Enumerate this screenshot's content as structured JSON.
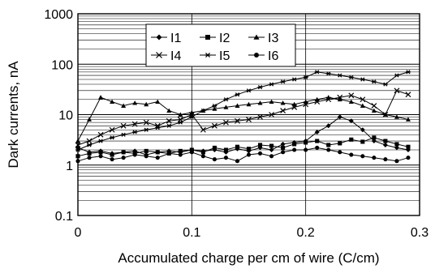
{
  "chart_data": {
    "type": "line",
    "xlabel": "Accumulated charge per cm of wire (C/cm)",
    "ylabel": "Dark currents, nA",
    "xlim": [
      0,
      0.3
    ],
    "ylim": [
      0.1,
      1000
    ],
    "y_scale": "log",
    "grid": true,
    "legend_position": "top-center",
    "x_ticks": [
      0,
      0.1,
      0.2,
      0.3
    ],
    "x_tick_labels": [
      "0",
      "0.1",
      "0.2",
      "0.3"
    ],
    "y_ticks": [
      0.1,
      1,
      10,
      100,
      1000
    ],
    "y_tick_labels": [
      "0.1",
      "1",
      "10",
      "100",
      "1000"
    ],
    "series": [
      {
        "name": "I1",
        "marker": "diamond",
        "x": [
          0,
          0.01,
          0.02,
          0.03,
          0.04,
          0.05,
          0.06,
          0.07,
          0.08,
          0.09,
          0.1,
          0.11,
          0.12,
          0.13,
          0.14,
          0.15,
          0.16,
          0.17,
          0.18,
          0.19,
          0.2,
          0.21,
          0.22,
          0.23,
          0.24,
          0.25,
          0.26,
          0.27,
          0.28,
          0.29
        ],
        "y": [
          2.2,
          1.8,
          1.9,
          1.7,
          1.8,
          1.9,
          1.6,
          1.8,
          1.9,
          1.8,
          2.0,
          1.9,
          2.0,
          1.8,
          2.1,
          1.9,
          2.2,
          2.0,
          2.6,
          2.8,
          3.0,
          4.5,
          6.0,
          9.0,
          7.5,
          5.0,
          3.0,
          2.5,
          2.2,
          2.0
        ]
      },
      {
        "name": "I2",
        "marker": "square",
        "x": [
          0,
          0.01,
          0.02,
          0.03,
          0.04,
          0.05,
          0.06,
          0.07,
          0.08,
          0.09,
          0.1,
          0.11,
          0.12,
          0.13,
          0.14,
          0.15,
          0.16,
          0.17,
          0.18,
          0.19,
          0.2,
          0.21,
          0.22,
          0.23,
          0.24,
          0.25,
          0.26,
          0.27,
          0.28,
          0.29
        ],
        "y": [
          1.5,
          1.7,
          1.8,
          1.6,
          1.8,
          1.7,
          1.9,
          1.8,
          1.7,
          1.9,
          2.0,
          1.8,
          2.2,
          2.0,
          2.3,
          2.1,
          2.5,
          2.4,
          2.2,
          2.6,
          2.8,
          3.0,
          2.5,
          2.7,
          3.2,
          2.9,
          3.5,
          3.0,
          2.6,
          2.3
        ]
      },
      {
        "name": "I3",
        "marker": "triangle",
        "x": [
          0,
          0.01,
          0.02,
          0.03,
          0.04,
          0.05,
          0.06,
          0.07,
          0.08,
          0.09,
          0.1,
          0.11,
          0.12,
          0.13,
          0.14,
          0.15,
          0.16,
          0.17,
          0.18,
          0.19,
          0.2,
          0.21,
          0.22,
          0.23,
          0.24,
          0.25,
          0.26,
          0.27,
          0.28,
          0.29
        ],
        "y": [
          3.0,
          8.0,
          22,
          18,
          15,
          17,
          16,
          18,
          12,
          10,
          11,
          12,
          13,
          14,
          15,
          16,
          17,
          18,
          17,
          16,
          18,
          20,
          22,
          20,
          18,
          15,
          12,
          10,
          9,
          8
        ]
      },
      {
        "name": "I4",
        "marker": "x",
        "x": [
          0,
          0.01,
          0.02,
          0.03,
          0.04,
          0.05,
          0.06,
          0.07,
          0.08,
          0.09,
          0.1,
          0.11,
          0.12,
          0.13,
          0.14,
          0.15,
          0.16,
          0.17,
          0.18,
          0.19,
          0.2,
          0.21,
          0.22,
          0.23,
          0.24,
          0.25,
          0.26,
          0.27,
          0.28,
          0.29
        ],
        "y": [
          2.5,
          3.0,
          4.0,
          5.0,
          6.0,
          6.5,
          7.0,
          6.0,
          7.5,
          8.0,
          10,
          5.0,
          6.0,
          7.0,
          7.5,
          8.0,
          9.0,
          10,
          12,
          14,
          16,
          18,
          20,
          22,
          24,
          20,
          15,
          10,
          30,
          25
        ]
      },
      {
        "name": "I5",
        "marker": "star",
        "x": [
          0,
          0.01,
          0.02,
          0.03,
          0.04,
          0.05,
          0.06,
          0.07,
          0.08,
          0.09,
          0.1,
          0.11,
          0.12,
          0.13,
          0.14,
          0.15,
          0.16,
          0.17,
          0.18,
          0.19,
          0.2,
          0.21,
          0.22,
          0.23,
          0.24,
          0.25,
          0.26,
          0.27,
          0.28,
          0.29
        ],
        "y": [
          2.0,
          2.5,
          3.0,
          3.5,
          4.0,
          4.5,
          5.0,
          5.5,
          6.0,
          7.0,
          9.0,
          12,
          15,
          20,
          25,
          30,
          35,
          40,
          45,
          50,
          55,
          70,
          65,
          60,
          55,
          50,
          45,
          40,
          60,
          70
        ]
      },
      {
        "name": "I6",
        "marker": "circle",
        "x": [
          0,
          0.01,
          0.02,
          0.03,
          0.04,
          0.05,
          0.06,
          0.07,
          0.08,
          0.09,
          0.1,
          0.11,
          0.12,
          0.13,
          0.14,
          0.15,
          0.16,
          0.17,
          0.18,
          0.19,
          0.2,
          0.21,
          0.22,
          0.23,
          0.24,
          0.25,
          0.26,
          0.27,
          0.28,
          0.29
        ],
        "y": [
          1.2,
          1.4,
          1.5,
          1.3,
          1.4,
          1.6,
          1.5,
          1.4,
          1.7,
          1.6,
          1.8,
          1.5,
          1.3,
          1.4,
          1.2,
          1.6,
          1.7,
          1.5,
          1.8,
          2.0,
          2.0,
          2.2,
          2.0,
          1.8,
          1.6,
          1.5,
          1.4,
          1.3,
          1.2,
          1.4
        ]
      }
    ]
  }
}
